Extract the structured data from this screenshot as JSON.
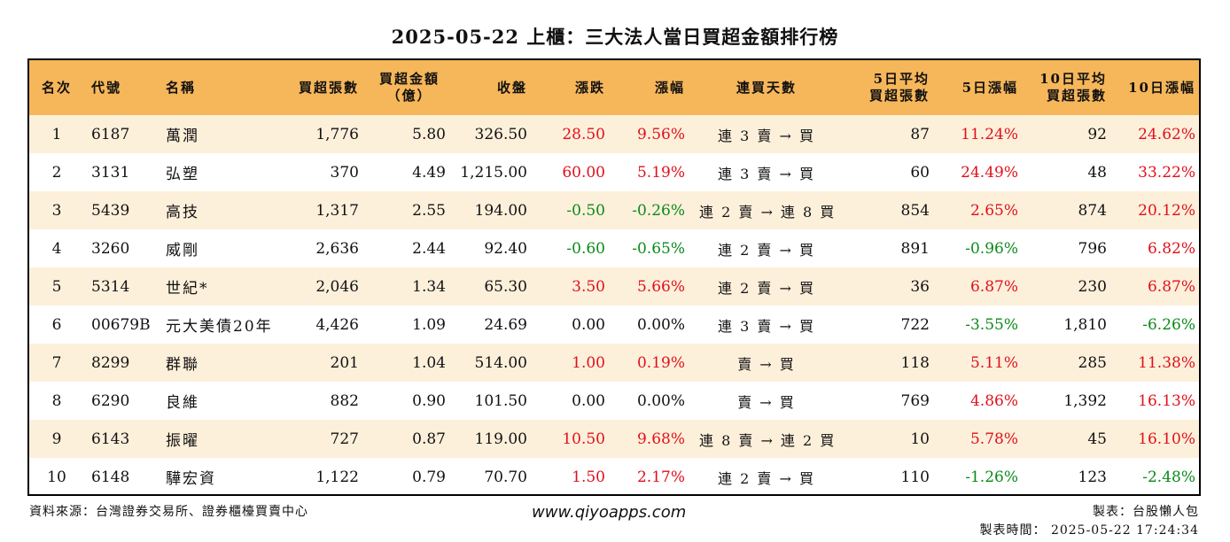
{
  "title": "2025-05-22 上櫃：三大法人當日買超金額排行榜",
  "headers": {
    "rank": "名次",
    "code": "代號",
    "name": "名稱",
    "buy_lots": "買超張數",
    "buy_amount_1": "買超金額",
    "buy_amount_2": "（億）",
    "close": "收盤",
    "change": "漲跌",
    "pct": "漲幅",
    "streak": "連買天數",
    "avg5_1": "5日平均",
    "avg5_2": "買超張數",
    "pct5": "5日漲幅",
    "avg10_1": "10日平均",
    "avg10_2": "買超張數",
    "pct10": "10日漲幅"
  },
  "rows": [
    {
      "rank": "1",
      "code": "6187",
      "name": "萬潤",
      "buy_lots": "1,776",
      "buy_amount": "5.80",
      "close": "326.50",
      "change": "28.50",
      "pct": "9.56%",
      "streak": "連 3 賣 → 買",
      "avg5": "87",
      "pct5": "11.24%",
      "avg10": "92",
      "pct10": "24.62%"
    },
    {
      "rank": "2",
      "code": "3131",
      "name": "弘塑",
      "buy_lots": "370",
      "buy_amount": "4.49",
      "close": "1,215.00",
      "change": "60.00",
      "pct": "5.19%",
      "streak": "連 3 賣 → 買",
      "avg5": "60",
      "pct5": "24.49%",
      "avg10": "48",
      "pct10": "33.22%"
    },
    {
      "rank": "3",
      "code": "5439",
      "name": "高技",
      "buy_lots": "1,317",
      "buy_amount": "2.55",
      "close": "194.00",
      "change": "-0.50",
      "pct": "-0.26%",
      "streak": "連 2 賣 → 連 8 買",
      "avg5": "854",
      "pct5": "2.65%",
      "avg10": "874",
      "pct10": "20.12%"
    },
    {
      "rank": "4",
      "code": "3260",
      "name": "威剛",
      "buy_lots": "2,636",
      "buy_amount": "2.44",
      "close": "92.40",
      "change": "-0.60",
      "pct": "-0.65%",
      "streak": "連 2 賣 → 買",
      "avg5": "891",
      "pct5": "-0.96%",
      "avg10": "796",
      "pct10": "6.82%"
    },
    {
      "rank": "5",
      "code": "5314",
      "name": "世紀*",
      "buy_lots": "2,046",
      "buy_amount": "1.34",
      "close": "65.30",
      "change": "3.50",
      "pct": "5.66%",
      "streak": "連 2 賣 → 買",
      "avg5": "36",
      "pct5": "6.87%",
      "avg10": "230",
      "pct10": "6.87%"
    },
    {
      "rank": "6",
      "code": "00679B",
      "name": "元大美債20年",
      "buy_lots": "4,426",
      "buy_amount": "1.09",
      "close": "24.69",
      "change": "0.00",
      "pct": "0.00%",
      "streak": "連 3 賣 → 買",
      "avg5": "722",
      "pct5": "-3.55%",
      "avg10": "1,810",
      "pct10": "-6.26%"
    },
    {
      "rank": "7",
      "code": "8299",
      "name": "群聯",
      "buy_lots": "201",
      "buy_amount": "1.04",
      "close": "514.00",
      "change": "1.00",
      "pct": "0.19%",
      "streak": "賣 → 買",
      "avg5": "118",
      "pct5": "5.11%",
      "avg10": "285",
      "pct10": "11.38%"
    },
    {
      "rank": "8",
      "code": "6290",
      "name": "良維",
      "buy_lots": "882",
      "buy_amount": "0.90",
      "close": "101.50",
      "change": "0.00",
      "pct": "0.00%",
      "streak": "賣 → 買",
      "avg5": "769",
      "pct5": "4.86%",
      "avg10": "1,392",
      "pct10": "16.13%"
    },
    {
      "rank": "9",
      "code": "6143",
      "name": "振曜",
      "buy_lots": "727",
      "buy_amount": "0.87",
      "close": "119.00",
      "change": "10.50",
      "pct": "9.68%",
      "streak": "連 8 賣 → 連 2 買",
      "avg5": "10",
      "pct5": "5.78%",
      "avg10": "45",
      "pct10": "16.10%"
    },
    {
      "rank": "10",
      "code": "6148",
      "name": "驊宏資",
      "buy_lots": "1,122",
      "buy_amount": "0.79",
      "close": "70.70",
      "change": "1.50",
      "pct": "2.17%",
      "streak": "連 2 賣 → 買",
      "avg5": "110",
      "pct5": "-1.26%",
      "avg10": "123",
      "pct10": "-2.48%"
    }
  ],
  "colors": {
    "header_bg": "#f6b65a",
    "stripe_bg": "#fdf0db",
    "up": "#e0101c",
    "down": "#0a8a19"
  },
  "footer": {
    "source": "資料來源：台灣證券交易所、證券櫃檯買賣中心",
    "website": "www.qiyoapps.com",
    "maker": "製表：台股懶人包",
    "time": "製表時間： 2025-05-22 17:24:34"
  }
}
